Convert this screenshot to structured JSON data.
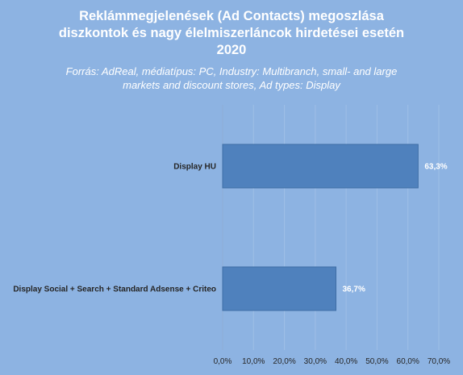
{
  "chart_data": {
    "type": "bar",
    "orientation": "horizontal",
    "title_lines": [
      "Reklámmegjelenések (Ad Contacts) megoszlása",
      "diszkontok és nagy élelmiszerláncok hirdetései esetén",
      "2020"
    ],
    "subtitle_lines": [
      "Forrás: AdReal, médiatípus: PC, Industry: Multibranch, small- and large",
      "markets and discount stores, Ad types: Display"
    ],
    "categories": [
      "Display HU",
      "Display Social + Search + Standard Adsense + Criteo"
    ],
    "values": [
      63.3,
      36.7
    ],
    "data_labels": [
      "63,3%",
      "36,7%"
    ],
    "xlim": [
      0,
      70
    ],
    "xticks": [
      0,
      10,
      20,
      30,
      40,
      50,
      60,
      70
    ],
    "xtick_labels": [
      "0,0%",
      "10,0%",
      "20,0%",
      "30,0%",
      "40,0%",
      "50,0%",
      "60,0%",
      "70,0%"
    ],
    "grid": true,
    "legend": "none",
    "colors": {
      "background": "#8db3e2",
      "bar": "#4f81bd",
      "bar_edge": "#3f6ea5",
      "grid": "#9fbfe6",
      "text": "#262626"
    }
  }
}
